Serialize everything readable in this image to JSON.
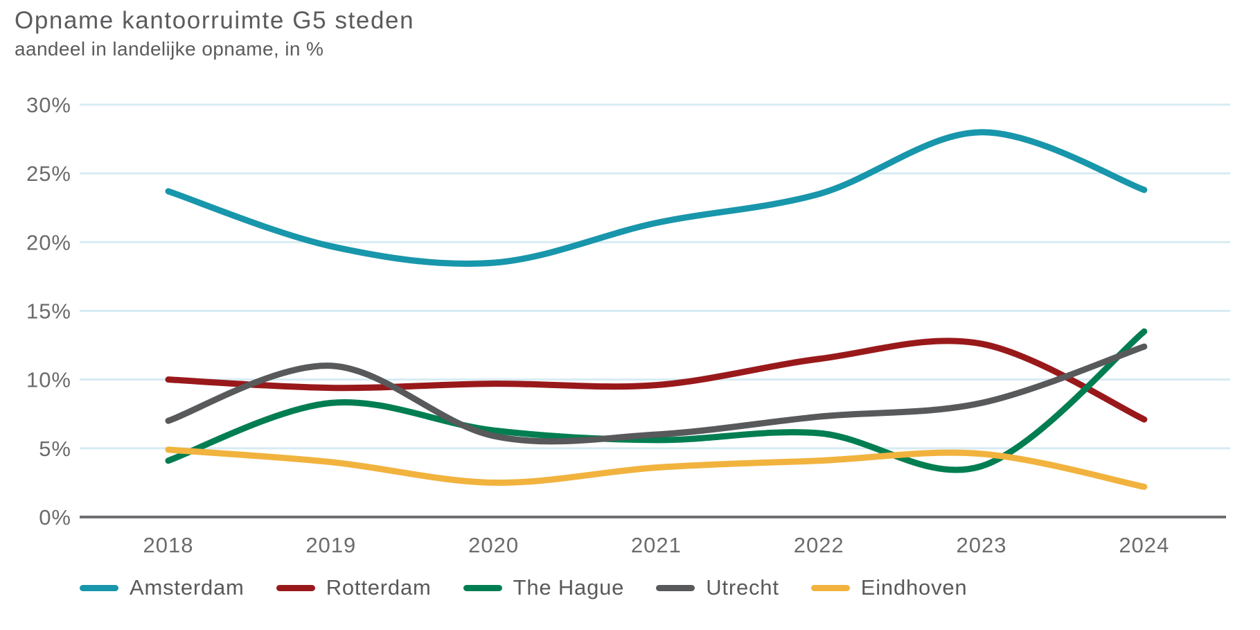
{
  "title": "Opname kantoorruimte G5 steden",
  "subtitle": "aandeel in landelijke opname, in %",
  "styles": {
    "grid_color": "#d7ebf3",
    "axis_color": "#6d6e71",
    "title_color": "#5a5b5d",
    "tick_color": "#6a6b6d"
  },
  "chart_data": {
    "type": "line",
    "title": "Opname kantoorruimte G5 steden",
    "subtitle": "aandeel in landelijke opname, in %",
    "x_labels": [
      "2018",
      "2019",
      "2020",
      "2021",
      "2022",
      "2023",
      "2024"
    ],
    "y_ticks": [
      {
        "value": 0,
        "label": "0%"
      },
      {
        "value": 5,
        "label": "5%"
      },
      {
        "value": 10,
        "label": "10%"
      },
      {
        "value": 15,
        "label": "15%"
      },
      {
        "value": 20,
        "label": "20%"
      },
      {
        "value": 25,
        "label": "25%"
      },
      {
        "value": 30,
        "label": "30%"
      }
    ],
    "ylim": [
      0,
      30
    ],
    "grid": "horizontal",
    "legend_position": "bottom",
    "line_smoothing": "spline",
    "series": [
      {
        "name": "Amsterdam",
        "color": "#1896ab",
        "values": [
          23.7,
          19.7,
          18.5,
          21.4,
          23.5,
          28.0,
          23.8
        ]
      },
      {
        "name": "Rotterdam",
        "color": "#99191b",
        "values": [
          10.0,
          9.4,
          9.7,
          9.6,
          11.5,
          12.6,
          7.1
        ]
      },
      {
        "name": "The Hague",
        "color": "#007e51",
        "values": [
          4.1,
          8.3,
          6.3,
          5.6,
          6.1,
          3.7,
          13.5
        ]
      },
      {
        "name": "Utrecht",
        "color": "#58595b",
        "values": [
          7.0,
          11.0,
          5.9,
          6.0,
          7.3,
          8.3,
          12.4
        ]
      },
      {
        "name": "Eindhoven",
        "color": "#f1b33e",
        "values": [
          4.9,
          4.0,
          2.5,
          3.6,
          4.1,
          4.6,
          2.2
        ]
      }
    ]
  }
}
